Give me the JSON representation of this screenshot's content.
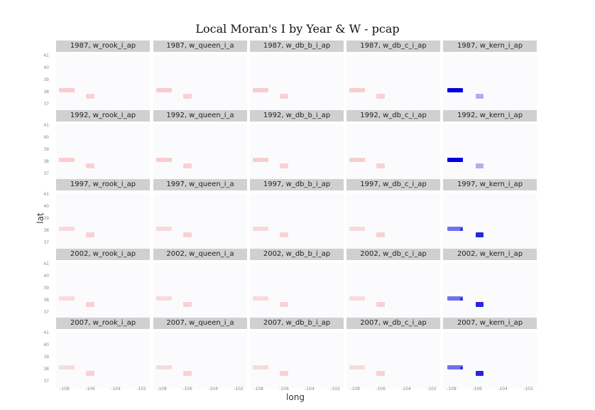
{
  "chart_data": {
    "type": "heatmap",
    "title": "Local Moran's I by Year & W - pcap",
    "xlabel": "long",
    "ylabel": "lat",
    "years": [
      "1987",
      "1992",
      "1997",
      "2002",
      "2007"
    ],
    "weights": [
      "w_rook_i_ap",
      "w_queen_i_a",
      "w_db_b_i_ap",
      "w_db_c_i_ap",
      "w_kern_i_ap"
    ],
    "panel_titles": [
      [
        "1987, w_rook_i_ap",
        "1987, w_queen_i_a",
        "1987, w_db_b_i_ap",
        "1987, w_db_c_i_ap",
        "1987, w_kern_i_ap"
      ],
      [
        "1992, w_rook_i_ap",
        "1992, w_queen_i_a",
        "1992, w_db_b_i_ap",
        "1992, w_db_c_i_ap",
        "1992, w_kern_i_ap"
      ],
      [
        "1997, w_rook_i_ap",
        "1997, w_queen_i_a",
        "1997, w_db_b_i_ap",
        "1997, w_db_c_i_ap",
        "1997, w_kern_i_ap"
      ],
      [
        "2002, w_rook_i_ap",
        "2002, w_queen_i_a",
        "2002, w_db_b_i_ap",
        "2002, w_db_c_i_ap",
        "2002, w_kern_i_ap"
      ],
      [
        "2007, w_rook_i_ap",
        "2007, w_queen_i_a",
        "2007, w_db_b_i_ap",
        "2007, w_db_c_i_ap",
        "2007, w_kern_i_ap"
      ]
    ],
    "y_ticks": [
      "41",
      "40",
      "39",
      "38",
      "37"
    ],
    "x_ticks": [
      "-108",
      "-106",
      "-104",
      "-102"
    ],
    "colors": {
      "background": "#fbfbfd",
      "strip": "#d0d0d0",
      "positive_light": "#f8c8c8",
      "negative_strong": "#0000dd",
      "negative_light": "#b0b0f0"
    },
    "kern_intensity": [
      {
        "year": "1987",
        "main": 1.0,
        "secondary": 0.3
      },
      {
        "year": "1992",
        "main": 1.0,
        "secondary": 0.3
      },
      {
        "year": "1997",
        "main": 0.55,
        "secondary": 0.85
      },
      {
        "year": "2002",
        "main": 0.55,
        "secondary": 0.85
      },
      {
        "year": "2007",
        "main": 0.55,
        "secondary": 0.85
      }
    ]
  }
}
